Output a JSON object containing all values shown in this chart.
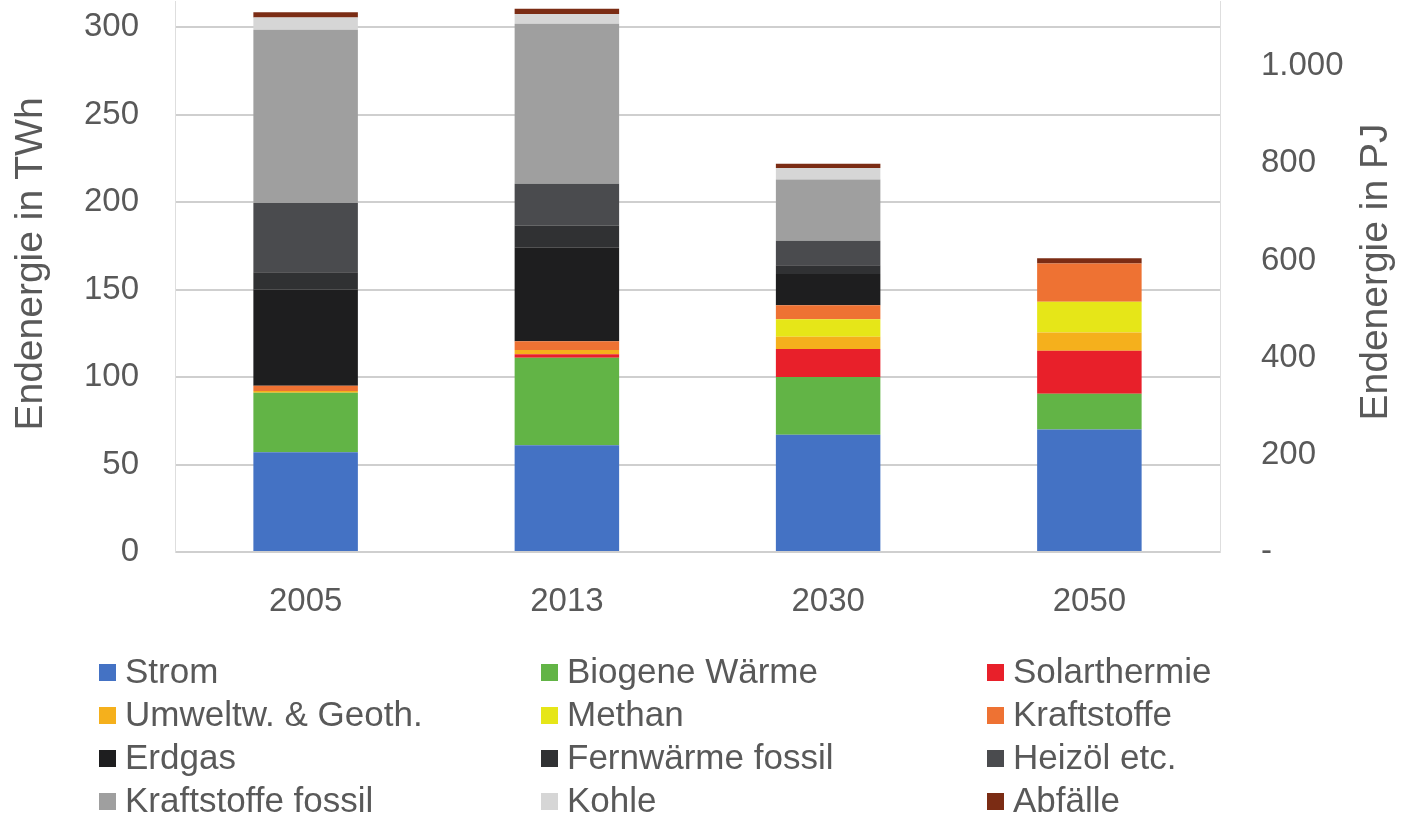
{
  "chart_data": {
    "type": "bar",
    "stacked": true,
    "ylabel": "Endenergie in TWh",
    "y2label": "Endenergie in PJ",
    "categories": [
      "2005",
      "2013",
      "2030",
      "2050"
    ],
    "ylim": [
      0,
      315
    ],
    "yticks": [
      0,
      50,
      100,
      150,
      200,
      250,
      300
    ],
    "y2lim": [
      0,
      1134
    ],
    "y2ticks": [
      {
        "value": 0,
        "label": "-"
      },
      200,
      400,
      600,
      800,
      {
        "value": 1000,
        "label": "1.000"
      }
    ],
    "grid": "y",
    "legend": "bottom",
    "series": [
      {
        "name": "Strom",
        "color": "#4472c4",
        "values": [
          57,
          61,
          67,
          70
        ]
      },
      {
        "name": "Biogene Wärme",
        "color": "#62b446",
        "values": [
          34,
          50,
          33,
          20.5
        ]
      },
      {
        "name": "Solarthermie",
        "color": "#e8202a",
        "values": [
          null,
          2,
          16,
          24.5
        ]
      },
      {
        "name": "Umweltw. & Geoth.",
        "color": "#f5b01c",
        "values": [
          1,
          2.5,
          7,
          10.5
        ]
      },
      {
        "name": "Methan",
        "color": "#e6e618",
        "values": [
          null,
          null,
          10,
          17.5
        ]
      },
      {
        "name": "Kraftstoffe",
        "color": "#ee7233",
        "values": [
          3,
          5,
          8,
          22
        ]
      },
      {
        "name": "Erdgas",
        "color": "#1e1e1f",
        "values": [
          55,
          53.5,
          18,
          null
        ]
      },
      {
        "name": "Fernwärme fossil",
        "color": "#303133",
        "values": [
          10,
          12.5,
          5,
          null
        ]
      },
      {
        "name": "Heizöl etc.",
        "color": "#4a4b4e",
        "values": [
          39.5,
          24,
          14,
          null
        ]
      },
      {
        "name": "Kraftstoffe fossil",
        "color": "#9f9f9f",
        "values": [
          99,
          91.5,
          35,
          null
        ]
      },
      {
        "name": "Kohle",
        "color": "#d6d6d6",
        "values": [
          7,
          5.5,
          6.5,
          null
        ]
      },
      {
        "name": "Abfälle",
        "color": "#7b2c14",
        "values": [
          3,
          3,
          2.5,
          3
        ]
      }
    ]
  }
}
